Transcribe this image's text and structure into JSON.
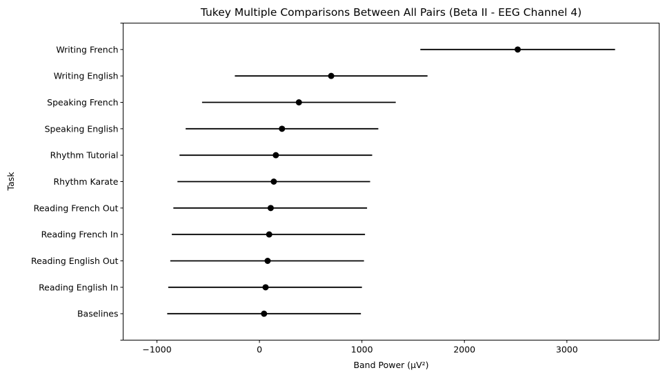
{
  "chart_data": {
    "type": "errorbar",
    "title": "Tukey Multiple Comparisons Between All Pairs (Beta II - EEG Channel 4)",
    "xlabel": "Band Power (µV²)",
    "ylabel": "Task",
    "xlim": [
      -1330,
      3900
    ],
    "xticks": [
      -1000,
      0,
      1000,
      2000,
      3000
    ],
    "xtick_labels": [
      "−1000",
      "0",
      "1000",
      "2000",
      "3000"
    ],
    "grid": false,
    "point_color": "#000000",
    "categories": [
      "Writing French",
      "Writing English",
      "Speaking French",
      "Speaking English",
      "Rhythm Tutorial",
      "Rhythm Karate",
      "Reading French Out",
      "Reading French In",
      "Reading English Out",
      "Reading English In",
      "Baselines"
    ],
    "means": [
      2520,
      700,
      385,
      220,
      160,
      140,
      110,
      95,
      80,
      60,
      45
    ],
    "lower": [
      1570,
      -240,
      -560,
      -720,
      -780,
      -800,
      -840,
      -855,
      -870,
      -890,
      -900
    ],
    "upper": [
      3470,
      1640,
      1330,
      1160,
      1100,
      1080,
      1050,
      1030,
      1020,
      1000,
      990
    ]
  }
}
